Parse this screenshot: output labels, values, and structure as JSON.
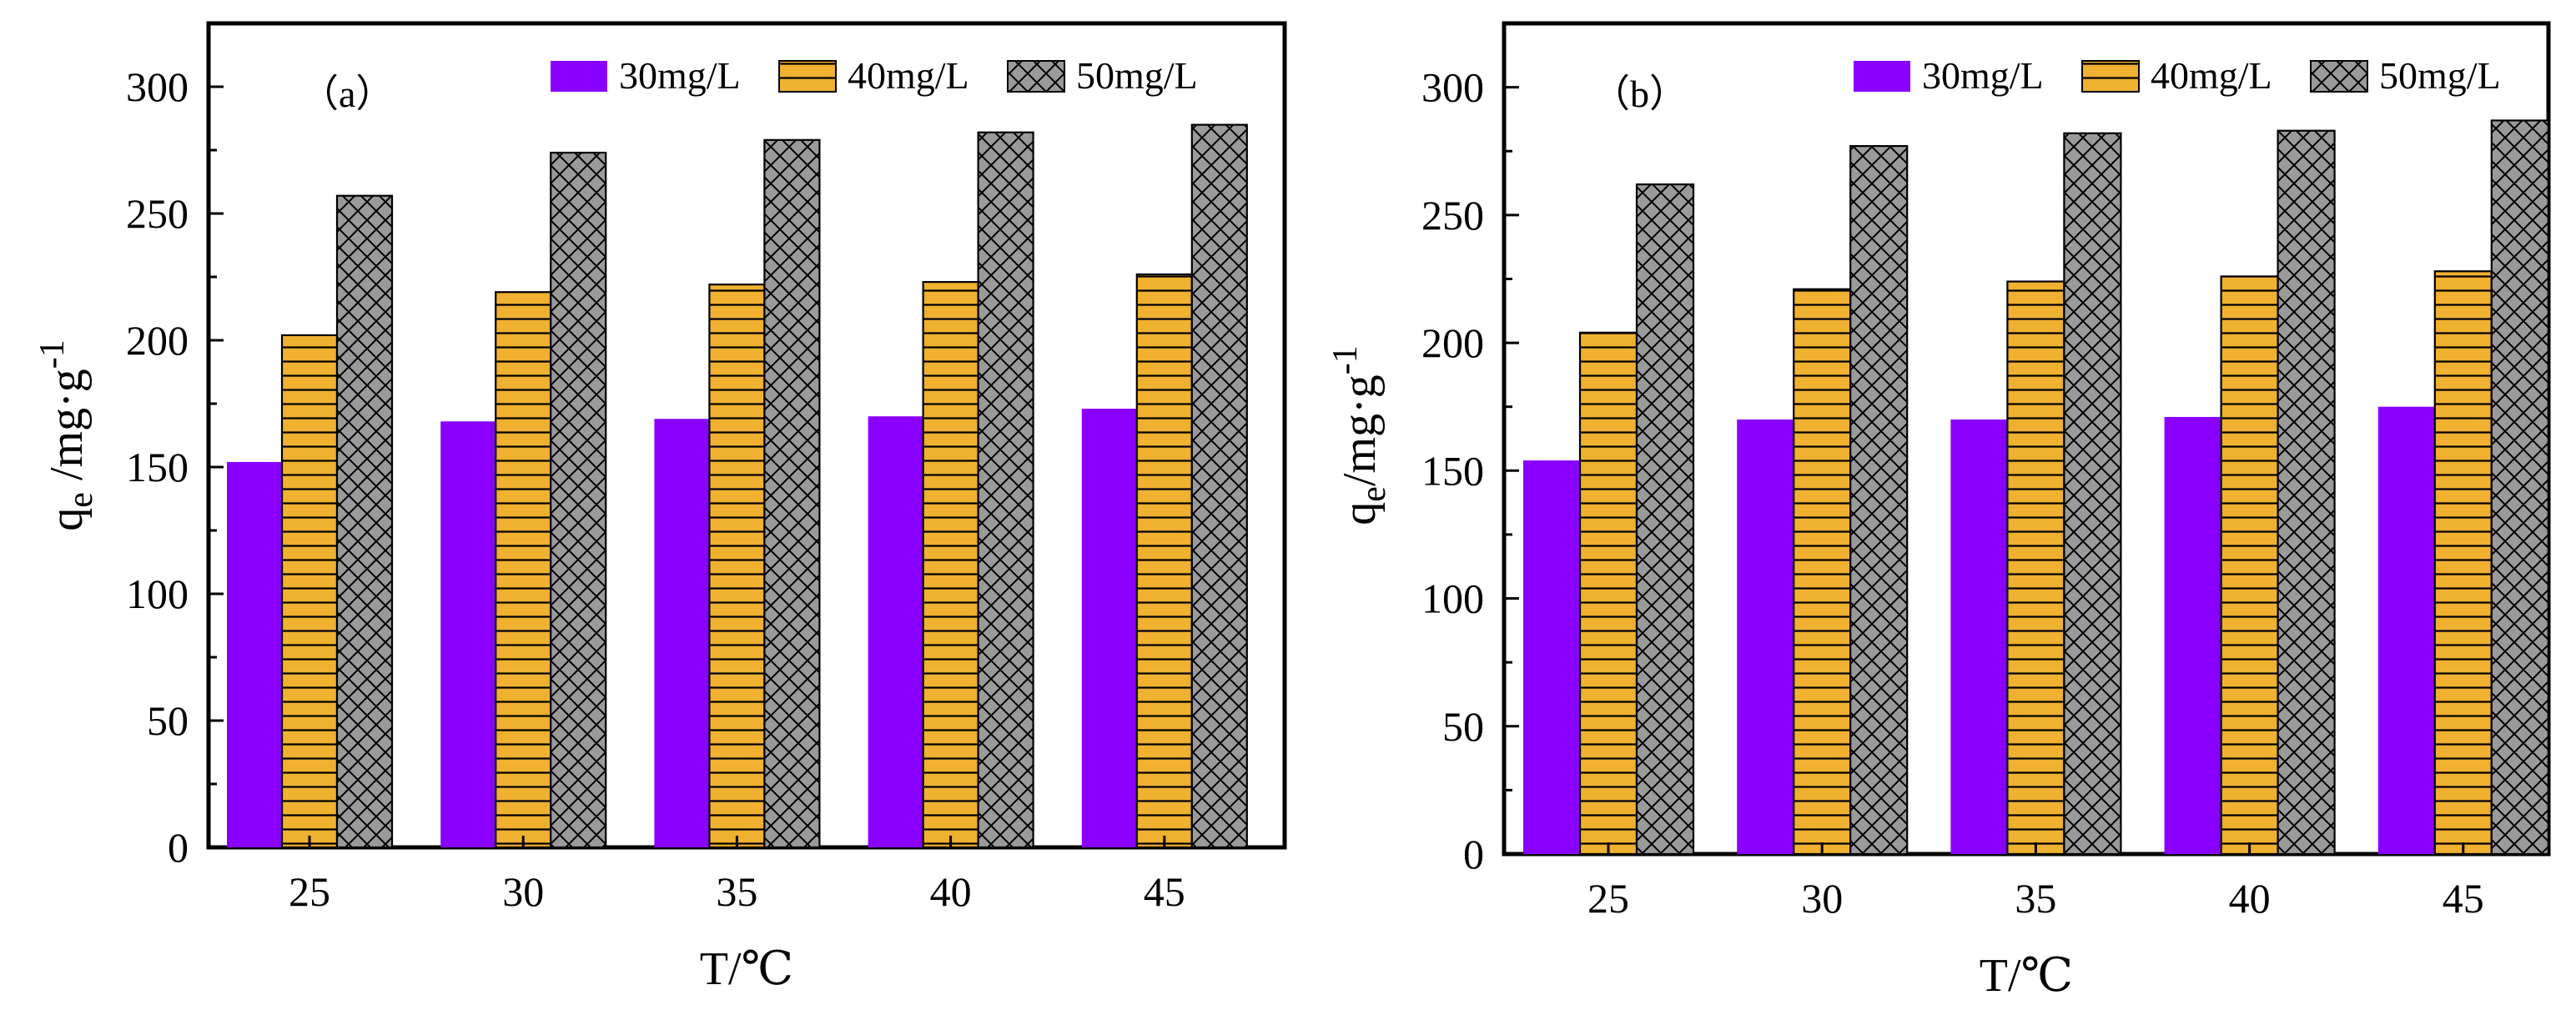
{
  "chart_data": [
    {
      "type": "bar",
      "panel_label": "（a）",
      "categories": [
        "25",
        "30",
        "35",
        "40",
        "45"
      ],
      "series": [
        {
          "name": "30mg/L",
          "values": [
            152,
            168,
            169,
            170,
            173
          ]
        },
        {
          "name": "40mg/L",
          "values": [
            202,
            219,
            222,
            223,
            226
          ]
        },
        {
          "name": "50mg/L",
          "values": [
            257,
            274,
            279,
            282,
            285
          ]
        }
      ],
      "xlabel": "T/℃",
      "ylabel": {
        "base": "q",
        "sub": "e",
        "unit": " /mg·g",
        "sup": "-1"
      },
      "ylim": [
        0,
        325
      ],
      "yticks": [
        "0",
        "50",
        "100",
        "150",
        "200",
        "250",
        "300"
      ],
      "legend": "top-right"
    },
    {
      "type": "bar",
      "panel_label": "（b）",
      "categories": [
        "25",
        "30",
        "35",
        "40",
        "45"
      ],
      "series": [
        {
          "name": "30mg/L",
          "values": [
            154,
            170,
            170,
            171,
            175
          ]
        },
        {
          "name": "40mg/L",
          "values": [
            204,
            221,
            224,
            226,
            228
          ]
        },
        {
          "name": "50mg/L",
          "values": [
            262,
            277,
            282,
            283,
            287
          ]
        }
      ],
      "xlabel": "T/℃",
      "ylabel": {
        "base": "q",
        "sub": "e",
        "unit": "/mg·g",
        "sup": "-1"
      },
      "ylim": [
        0,
        325
      ],
      "yticks": [
        "0",
        "50",
        "100",
        "150",
        "200",
        "250",
        "300"
      ],
      "legend": "top-right"
    }
  ],
  "colors": {
    "series_fill": [
      "#8a00ff",
      "#f0b030",
      "#9a9a9a"
    ],
    "hatch_line": "#000000",
    "axis": "#000000"
  }
}
